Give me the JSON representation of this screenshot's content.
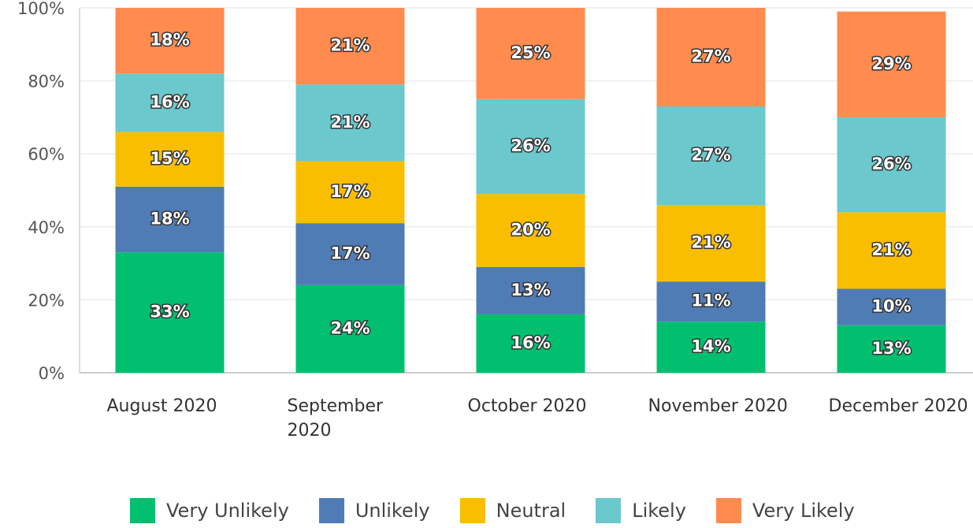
{
  "chart_data": {
    "type": "stacked_bar",
    "categories": [
      "August 2020",
      "September 2020",
      "October 2020",
      "November 2020",
      "December 2020"
    ],
    "series": [
      {
        "name": "Very Unlikely",
        "color": "#00bf6f",
        "values": [
          33,
          24,
          16,
          14,
          13
        ],
        "value_labels": [
          "33%",
          "24%",
          "16%",
          "14%",
          "13%"
        ]
      },
      {
        "name": "Unlikely",
        "color": "#507cb6",
        "values": [
          18,
          17,
          13,
          11,
          10
        ],
        "value_labels": [
          "18%",
          "17%",
          "13%",
          "11%",
          "10%"
        ]
      },
      {
        "name": "Neutral",
        "color": "#f9be00",
        "values": [
          15,
          17,
          20,
          21,
          21
        ],
        "value_labels": [
          "15%",
          "17%",
          "20%",
          "21%",
          "21%"
        ]
      },
      {
        "name": "Likely",
        "color": "#6bc8cd",
        "values": [
          16,
          21,
          26,
          27,
          26
        ],
        "value_labels": [
          "16%",
          "21%",
          "26%",
          "27%",
          "26%"
        ]
      },
      {
        "name": "Very Likely",
        "color": "#ff8b4f",
        "values": [
          18,
          21,
          25,
          27,
          29
        ],
        "value_labels": [
          "18%",
          "21%",
          "25%",
          "27%",
          "29%"
        ]
      }
    ],
    "ylim": [
      0,
      100
    ],
    "yticks": [
      {
        "value": 0,
        "label": "0%"
      },
      {
        "value": 20,
        "label": "20%"
      },
      {
        "value": 40,
        "label": "40%"
      },
      {
        "value": 60,
        "label": "60%"
      },
      {
        "value": 80,
        "label": "80%"
      },
      {
        "value": 100,
        "label": "100%"
      }
    ],
    "grid": true,
    "legend": "bottom"
  }
}
